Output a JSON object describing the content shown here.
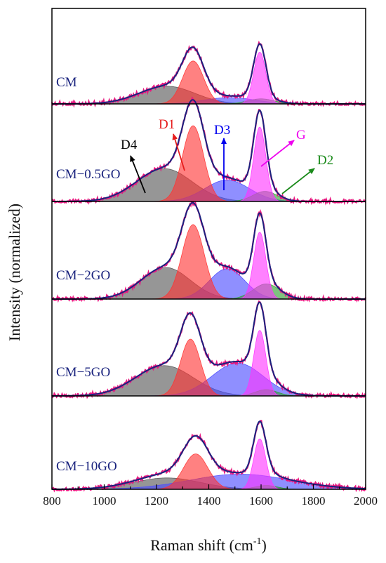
{
  "chart_data": {
    "type": "line",
    "title": "",
    "xlabel": "Raman shift (cm",
    "xlabel_sup": "-1",
    "xlabel_end": ")",
    "ylabel": "Intensity (normalized)",
    "xlim": [
      800,
      2000
    ],
    "x_ticks": [
      "800",
      "1000",
      "1200",
      "1400",
      "1600",
      "1800",
      "2000"
    ],
    "panel_order": [
      "CM",
      "CM−0.5GO",
      "CM−2GO",
      "CM−5GO",
      "CM−10GO"
    ],
    "colors": {
      "measured": "#e8177f",
      "fit": "#1a237e",
      "D1": "#ff3333",
      "D2": "#2e9e2e",
      "D3": "#4a4aff",
      "D4": "#555555",
      "G": "#ff33ff"
    },
    "annotations": [
      {
        "label": "D1",
        "band": "D1",
        "color": "#e61c1c"
      },
      {
        "label": "D3",
        "band": "D3",
        "color": "#0000ee"
      },
      {
        "label": "G",
        "band": "G",
        "color": "#ee00ee"
      },
      {
        "label": "D4",
        "band": "D4",
        "color": "#000000"
      },
      {
        "label": "D2",
        "band": "D2",
        "color": "#1a8a1a"
      }
    ],
    "samples": [
      {
        "name": "CM",
        "bands": [
          {
            "name": "D4",
            "center": 1240,
            "height": 0.14,
            "fwhm": 250
          },
          {
            "name": "D1",
            "center": 1340,
            "height": 0.34,
            "fwhm": 95
          },
          {
            "name": "D3",
            "center": 1480,
            "height": 0.05,
            "fwhm": 230
          },
          {
            "name": "G",
            "center": 1595,
            "height": 0.41,
            "fwhm": 55
          },
          {
            "name": "D2",
            "center": 1600,
            "height": 0.04,
            "fwhm": 120
          }
        ]
      },
      {
        "name": "CM−0.5GO",
        "bands": [
          {
            "name": "D4",
            "center": 1230,
            "height": 0.26,
            "fwhm": 250
          },
          {
            "name": "D1",
            "center": 1340,
            "height": 0.6,
            "fwhm": 95
          },
          {
            "name": "D3",
            "center": 1470,
            "height": 0.17,
            "fwhm": 200
          },
          {
            "name": "G",
            "center": 1595,
            "height": 0.59,
            "fwhm": 55
          },
          {
            "name": "D2",
            "center": 1615,
            "height": 0.08,
            "fwhm": 110
          }
        ]
      },
      {
        "name": "CM−2GO",
        "bands": [
          {
            "name": "D4",
            "center": 1235,
            "height": 0.25,
            "fwhm": 220
          },
          {
            "name": "D1",
            "center": 1340,
            "height": 0.59,
            "fwhm": 100
          },
          {
            "name": "D3",
            "center": 1470,
            "height": 0.24,
            "fwhm": 160
          },
          {
            "name": "G",
            "center": 1595,
            "height": 0.53,
            "fwhm": 55
          },
          {
            "name": "D2",
            "center": 1620,
            "height": 0.12,
            "fwhm": 120
          }
        ]
      },
      {
        "name": "CM−5GO",
        "bands": [
          {
            "name": "D4",
            "center": 1230,
            "height": 0.24,
            "fwhm": 260
          },
          {
            "name": "D1",
            "center": 1330,
            "height": 0.45,
            "fwhm": 90
          },
          {
            "name": "D3",
            "center": 1510,
            "height": 0.26,
            "fwhm": 230
          },
          {
            "name": "G",
            "center": 1595,
            "height": 0.52,
            "fwhm": 55
          },
          {
            "name": "D2",
            "center": 1620,
            "height": 0.05,
            "fwhm": 100
          }
        ]
      },
      {
        "name": "CM−10GO",
        "bands": [
          {
            "name": "D4",
            "center": 1240,
            "height": 0.09,
            "fwhm": 300
          },
          {
            "name": "D1",
            "center": 1350,
            "height": 0.28,
            "fwhm": 110
          },
          {
            "name": "D3",
            "center": 1520,
            "height": 0.12,
            "fwhm": 450
          },
          {
            "name": "G",
            "center": 1595,
            "height": 0.4,
            "fwhm": 55
          },
          {
            "name": "D2",
            "center": 1620,
            "height": 0.03,
            "fwhm": 100
          }
        ]
      }
    ]
  }
}
